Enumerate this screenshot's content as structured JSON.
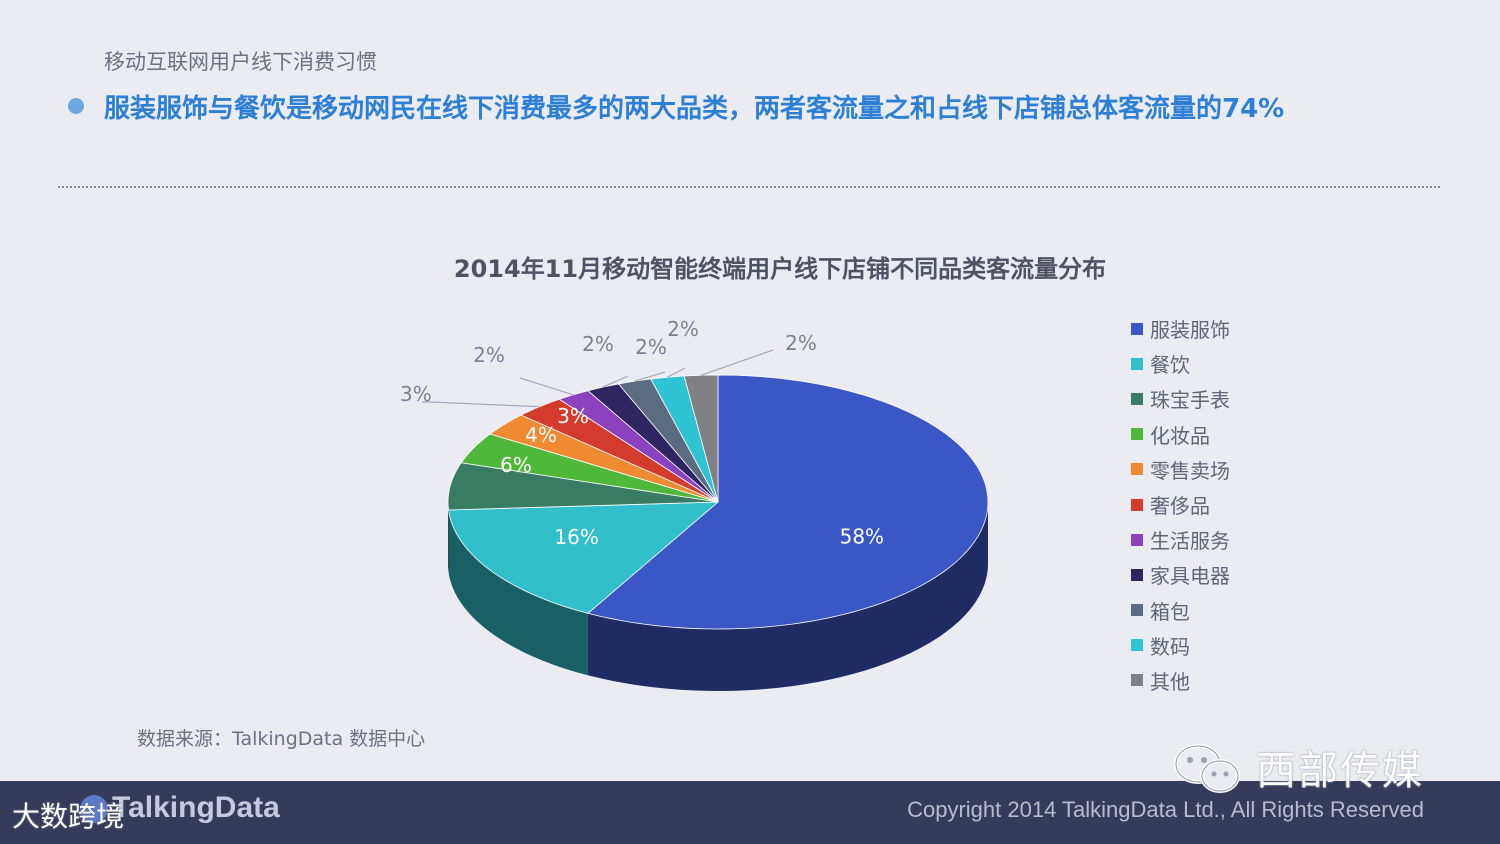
{
  "header": {
    "subtitle": "移动互联网用户线下消费习惯",
    "headline": "服装服饰与餐饮是移动网民在线下消费最多的两大品类，两者客流量之和占线下店铺总体客流量的74%"
  },
  "chart_data": {
    "type": "pie",
    "title": "2014年11月移动智能终端用户线下店铺不同品类客流量分布",
    "categories": [
      "服装服饰",
      "餐饮",
      "珠宝手表",
      "化妆品",
      "零售卖场",
      "奢侈品",
      "生活服务",
      "家具电器",
      "箱包",
      "数码",
      "其他"
    ],
    "values": [
      58,
      16,
      6,
      4,
      3,
      3,
      2,
      2,
      2,
      2,
      2
    ],
    "labels": [
      "58%",
      "16%",
      "6%",
      "4%",
      "3%",
      "3%",
      "2%",
      "2%",
      "2%",
      "2%",
      "2%"
    ],
    "colors": [
      "#3b57c6",
      "#31bfcb",
      "#377c63",
      "#4fb83a",
      "#ef8a33",
      "#d33c2d",
      "#8a42be",
      "#2f2560",
      "#5b6b82",
      "#2ec4d4",
      "#7f7f84"
    ],
    "legend_position": "right",
    "style": "3d"
  },
  "source": "数据来源：TalkingData 数据中心",
  "footer": {
    "logo": "TalkingData",
    "copyright": "Copyright 2014 TalkingData Ltd., All Rights Reserved"
  },
  "watermark": {
    "account": "西部传媒",
    "site": "大数跨境",
    "icon": "wechat-icon"
  }
}
